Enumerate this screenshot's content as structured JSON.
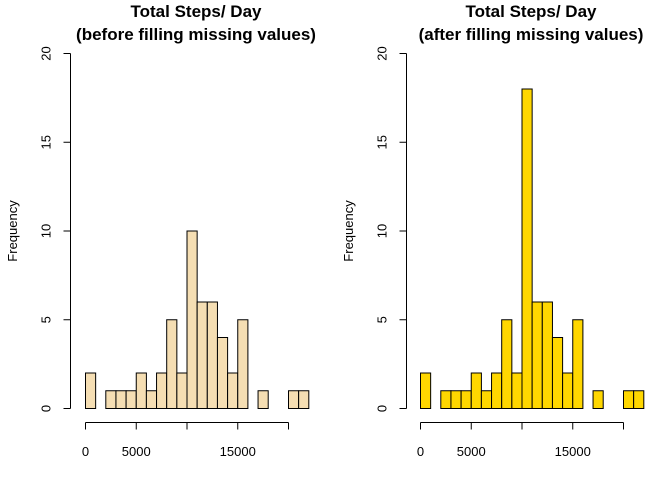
{
  "chart_data": [
    {
      "type": "bar",
      "title_line1": "Total Steps/ Day",
      "title_line2": "(before filling missing values)",
      "ylabel": "Frequency",
      "xlabel": "",
      "bar_color": "#F5DEB3",
      "bin_width": 1000,
      "x_start": 0,
      "values": [
        2,
        0,
        1,
        1,
        1,
        2,
        1,
        2,
        5,
        2,
        10,
        6,
        6,
        4,
        2,
        5,
        0,
        1,
        0,
        0,
        1,
        1
      ],
      "xlim": [
        0,
        22000
      ],
      "ylim": [
        0,
        20
      ],
      "xticks": [
        0,
        5000,
        10000,
        15000,
        20000
      ],
      "xtick_labels": [
        "0",
        "5000",
        "",
        "15000",
        ""
      ],
      "yticks": [
        0,
        5,
        10,
        15,
        20
      ],
      "ytick_labels": [
        "0",
        "5",
        "10",
        "15",
        "20"
      ]
    },
    {
      "type": "bar",
      "title_line1": "Total Steps/ Day",
      "title_line2": "(after filling missing values)",
      "ylabel": "Frequency",
      "xlabel": "",
      "bar_color": "#FFD700",
      "bin_width": 1000,
      "x_start": 0,
      "values": [
        2,
        0,
        1,
        1,
        1,
        2,
        1,
        2,
        5,
        2,
        18,
        6,
        6,
        4,
        2,
        5,
        0,
        1,
        0,
        0,
        1,
        1
      ],
      "xlim": [
        0,
        22000
      ],
      "ylim": [
        0,
        20
      ],
      "xticks": [
        0,
        5000,
        10000,
        15000,
        20000
      ],
      "xtick_labels": [
        "0",
        "5000",
        "",
        "15000",
        ""
      ],
      "yticks": [
        0,
        5,
        10,
        15,
        20
      ],
      "ytick_labels": [
        "0",
        "5",
        "10",
        "15",
        "20"
      ]
    }
  ]
}
